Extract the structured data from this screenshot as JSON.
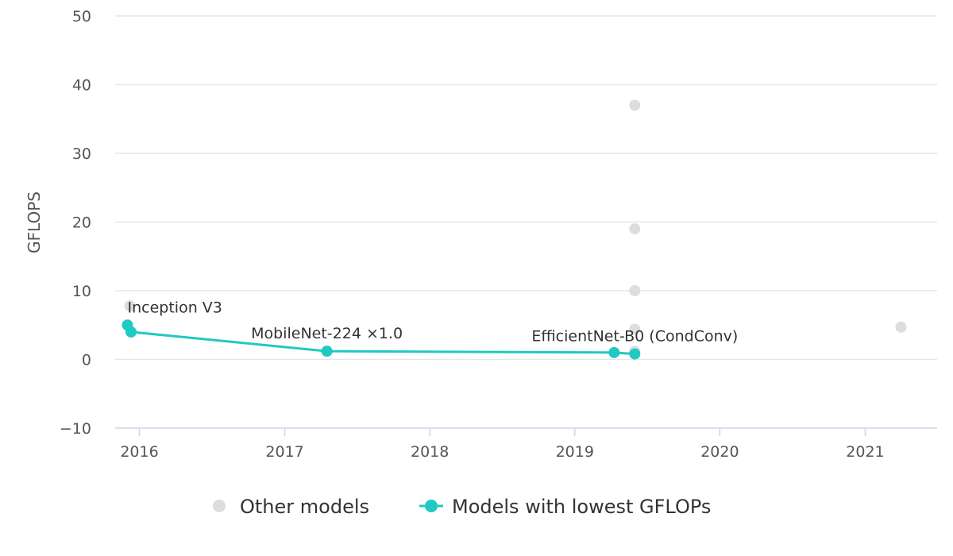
{
  "chart_data": {
    "type": "scatter",
    "ylabel": "GFLOPS",
    "xlabel": "",
    "ylim": [
      -10,
      50
    ],
    "yticks": [
      -10,
      0,
      10,
      20,
      30,
      40,
      50
    ],
    "xlim": [
      "2015-11-01",
      "2021-07-01"
    ],
    "xticks": [
      "2016",
      "2017",
      "2018",
      "2019",
      "2020",
      "2021"
    ],
    "grid": true,
    "legend_position": "bottom",
    "series": [
      {
        "name": "Other models",
        "color": "#dddddd",
        "line": false,
        "points": [
          {
            "x": "2015-12-08",
            "y": 7.8
          },
          {
            "x": "2019-06-01",
            "y": 37.0
          },
          {
            "x": "2019-06-01",
            "y": 19.0
          },
          {
            "x": "2019-06-01",
            "y": 10.0
          },
          {
            "x": "2019-06-01",
            "y": 4.4
          },
          {
            "x": "2019-06-01",
            "y": 1.2
          },
          {
            "x": "2021-04-01",
            "y": 4.7
          }
        ]
      },
      {
        "name": "Models with lowest GFLOPs",
        "color": "#20c9c2",
        "line": true,
        "points": [
          {
            "x": "2015-12-02",
            "y": 5.0
          },
          {
            "x": "2015-12-11",
            "y": 4.0
          },
          {
            "x": "2017-04-17",
            "y": 1.2
          },
          {
            "x": "2019-04-10",
            "y": 1.0
          },
          {
            "x": "2019-06-01",
            "y": 0.8
          }
        ]
      }
    ],
    "annotations": [
      {
        "label": "Inception V3",
        "x": "2015-12-02",
        "y": 5.0
      },
      {
        "label": "MobileNet-224 ×1.0",
        "x": "2017-04-17",
        "y": 1.2
      },
      {
        "label": "EfficientNet-B0 (CondConv)",
        "x": "2019-06-01",
        "y": 0.8
      }
    ]
  }
}
